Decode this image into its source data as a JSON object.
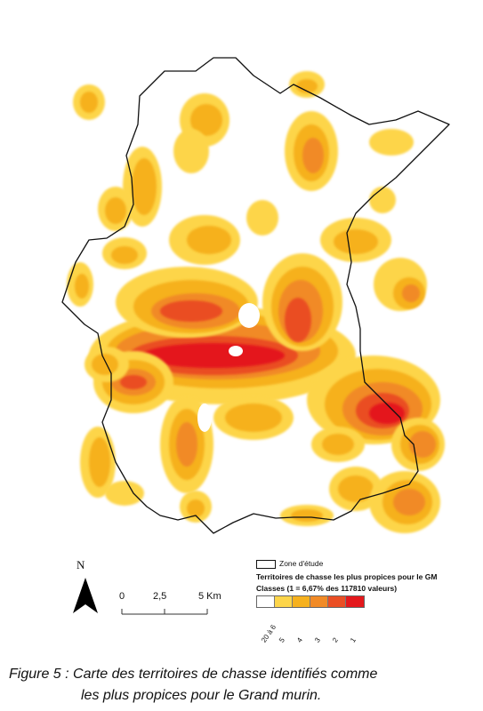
{
  "legend": {
    "zone_label": "Zone d'étude",
    "title": "Territoires de chasse les plus propices pour le GM",
    "subtitle": "Classes (1 = 6,67% des 117810 valeurs)",
    "classes": [
      {
        "label": "20 à 6",
        "color": "#ffffff"
      },
      {
        "label": "5",
        "color": "#fdd54a"
      },
      {
        "label": "4",
        "color": "#f6b11e"
      },
      {
        "label": "3",
        "color": "#f18a26"
      },
      {
        "label": "2",
        "color": "#ea4e24"
      },
      {
        "label": "1",
        "color": "#e4181c"
      }
    ]
  },
  "north": {
    "label": "N"
  },
  "scale": {
    "ticks": [
      "0",
      "2,5",
      "5 Km"
    ]
  },
  "caption": {
    "line1": "Figure 5 : Carte des territoires de chasse identifiés comme",
    "line2": "les plus propices pour le Grand murin."
  }
}
